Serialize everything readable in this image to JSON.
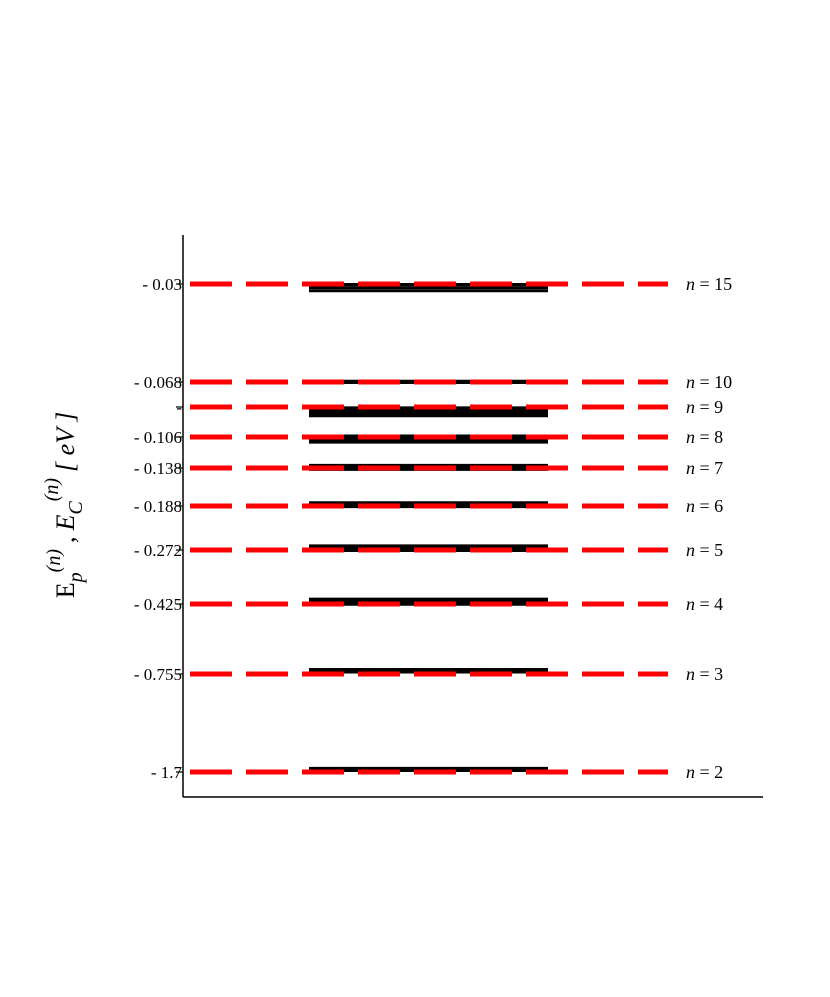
{
  "chart_data": {
    "type": "line",
    "title": "",
    "xlabel": "",
    "ylabel": {
      "main_symbol": "E",
      "sub_1": "p",
      "sup_1": "(n)",
      "separator": ",",
      "symbol_2": "E",
      "sub_2": "C",
      "sup_2": "(n)",
      "unit": "[ eV ]"
    },
    "y_scale": "nonlinear (labelled energy levels)",
    "grid": false,
    "levels": [
      {
        "n": 2,
        "energy": -1.7,
        "tick_label": "- 1.7",
        "n_label": "n = 2",
        "black_lines": [
          -1.685,
          -1.665
        ]
      },
      {
        "n": 3,
        "energy": -0.755,
        "tick_label": "- 0.755",
        "n_label": "n = 3",
        "black_lines": [
          -0.7455,
          -0.74,
          -0.7335
        ]
      },
      {
        "n": 4,
        "energy": -0.425,
        "tick_label": "- 0.425",
        "n_label": "n = 4",
        "black_lines": [
          -0.4263,
          -0.4225,
          -0.4175,
          -0.4112
        ]
      },
      {
        "n": 5,
        "energy": -0.272,
        "tick_label": "- 0.272",
        "n_label": "n = 5",
        "black_lines": [
          -0.2733,
          -0.2711,
          -0.2692,
          -0.2664,
          -0.2641
        ]
      },
      {
        "n": 6,
        "energy": -0.188,
        "tick_label": "- 0.188",
        "n_label": "n = 6",
        "black_lines": [
          -0.1893,
          -0.1876,
          -0.1863,
          -0.1848,
          -0.1837
        ]
      },
      {
        "n": 7,
        "energy": -0.138,
        "tick_label": "- 0.138",
        "n_label": "n = 7",
        "black_lines": [
          -0.1398,
          -0.1388,
          -0.1375,
          -0.1366,
          -0.1358,
          -0.1353
        ]
      },
      {
        "n": 8,
        "energy": -0.106,
        "tick_label": "- 0.106",
        "n_label": "n = 8",
        "black_lines": [
          -0.1113,
          -0.1095,
          -0.1078,
          -0.1068,
          -0.1058,
          -0.1052
        ]
      },
      {
        "n": 9,
        "energy": -0.083,
        "tick_label": "-",
        "n_label": "n = 9",
        "black_lines": [
          -0.0897,
          -0.0877,
          -0.0857,
          -0.0847,
          -0.0837
        ]
      },
      {
        "n": 10,
        "energy": -0.068,
        "tick_label": "- 0.068",
        "n_label": "n = 10",
        "black_lines": [
          -0.0683,
          -0.0677
        ]
      },
      {
        "n": 15,
        "energy": -0.03,
        "tick_label": "- 0.03",
        "n_label": "n = 15",
        "black_lines": [
          -0.0302,
          -0.0314,
          -0.0326
        ]
      }
    ],
    "series": [
      {
        "style": "red dashed",
        "color": "#ff0000"
      },
      {
        "style": "black solid",
        "color": "#000000"
      }
    ]
  }
}
